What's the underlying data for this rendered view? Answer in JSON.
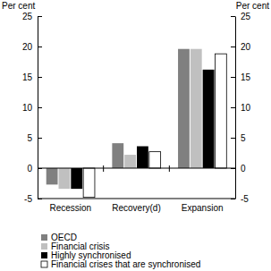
{
  "chart_data": {
    "type": "bar",
    "ylabel": "Per cent",
    "y2label": "Per cent",
    "categories": [
      "Recession",
      "Recovery(d)",
      "Expansion"
    ],
    "series": [
      {
        "name": "OECD",
        "color": "#808080",
        "values": [
          -2.7,
          4.1,
          19.6
        ]
      },
      {
        "name": "Financial crisis",
        "color": "#c0c0c0",
        "values": [
          -3.4,
          2.2,
          19.6
        ]
      },
      {
        "name": "Highly synchronised",
        "color": "#000000",
        "values": [
          -3.4,
          3.6,
          16.2
        ]
      },
      {
        "name": "Financial crises that are synchronised",
        "color": "#ffffff",
        "values": [
          -4.8,
          2.7,
          18.8
        ]
      }
    ],
    "ylim": [
      -5,
      25
    ],
    "yticks": [
      -5,
      0,
      5,
      10,
      15,
      20,
      25
    ],
    "y2lim": [
      -5,
      25
    ],
    "y2ticks": [
      -5,
      0,
      5,
      10,
      15,
      20,
      25
    ],
    "grid": false,
    "legend": "bottom"
  }
}
